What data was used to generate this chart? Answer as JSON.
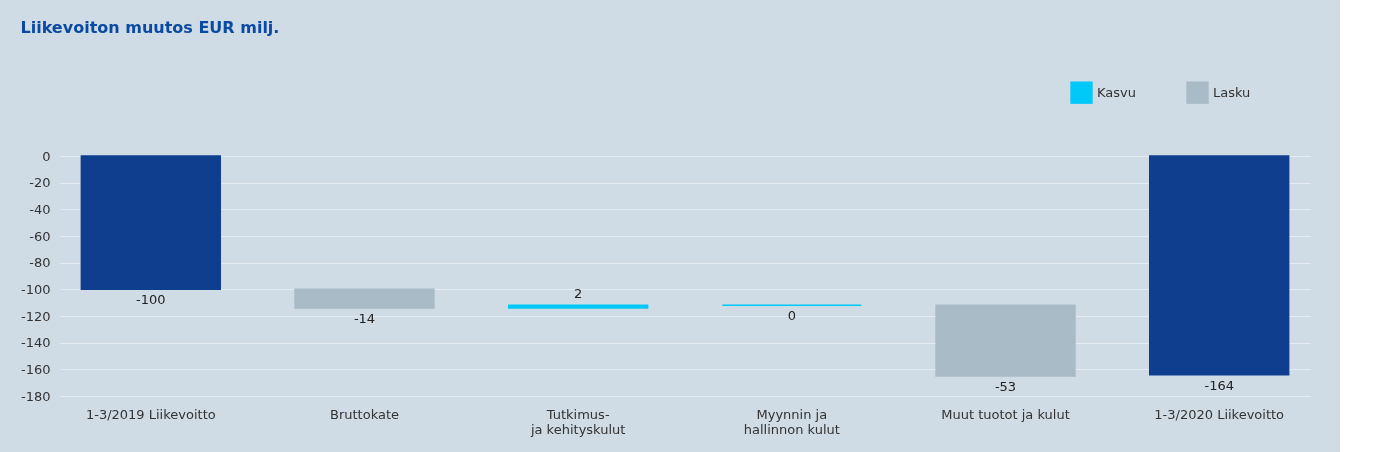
{
  "chart_data": {
    "type": "bar",
    "title": "Liikevoiton muutos EUR milj.",
    "categories": [
      "1-3/2019 Liikevoitto",
      "Bruttokate",
      "Tutkimus-\nja kehityskulut",
      "Myynnin ja\nhallinnon kulut",
      "Muut tuotot ja kulut",
      "1-3/2020 Liikevoitto"
    ],
    "series": [
      {
        "color": "#0f3e8f",
        "base": [
          0,
          null,
          null,
          null,
          null,
          0
        ],
        "values": [
          -100,
          null,
          null,
          null,
          null,
          -164
        ]
      },
      {
        "name": "Kasvu",
        "color": "#00c8f8",
        "base": [
          null,
          null,
          -114,
          -112,
          null,
          null
        ],
        "values": [
          null,
          null,
          2,
          0,
          null,
          null
        ]
      },
      {
        "name": "Lasku",
        "color": "#a9bbc6",
        "base": [
          null,
          -100,
          null,
          null,
          -112,
          null
        ],
        "values": [
          null,
          -14,
          null,
          null,
          -53,
          null
        ]
      }
    ],
    "ylim": [
      -180,
      0
    ],
    "yticks": [
      -180,
      -160,
      -140,
      -120,
      -100,
      -80,
      -60,
      -40,
      -20,
      0
    ],
    "grid": "y",
    "legend": "top right",
    "data_labels": true
  }
}
